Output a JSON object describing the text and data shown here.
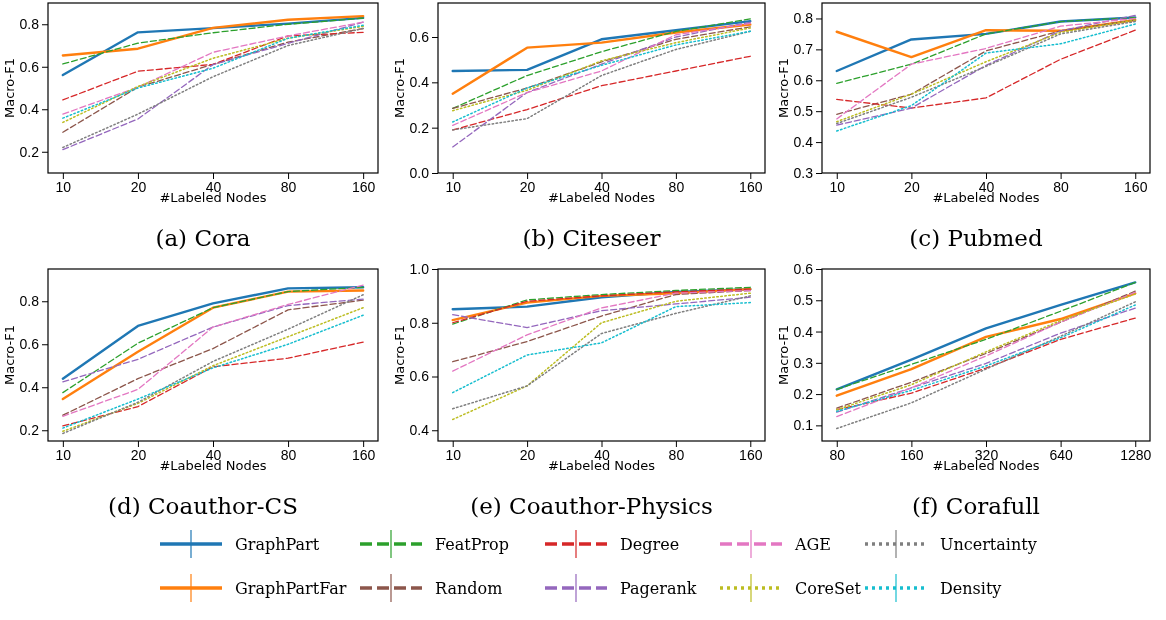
{
  "chart_data": [
    {
      "type": "line",
      "title": "(a) Cora",
      "xlabel": "#Labeled Nodes",
      "ylabel": "Macro-F1",
      "categories": [
        "10",
        "20",
        "40",
        "80",
        "160"
      ],
      "ylim": [
        0.1,
        0.9
      ],
      "yticks": [
        {
          "value": 0.2,
          "label": "0.2"
        },
        {
          "value": 0.4,
          "label": "0.4"
        },
        {
          "value": 0.6,
          "label": "0.6"
        },
        {
          "value": 0.8,
          "label": "0.8"
        }
      ],
      "legend": "bottom",
      "series": [
        {
          "name": "GraphPart",
          "color": "#1f77b4",
          "line_style": "solid",
          "values": [
            0.561,
            0.762,
            0.782,
            0.803,
            0.83
          ]
        },
        {
          "name": "GraphPartFar",
          "color": "#ff7f0e",
          "line_style": "solid",
          "values": [
            0.653,
            0.685,
            0.783,
            0.821,
            0.838
          ]
        },
        {
          "name": "FeatProp",
          "color": "#2ca02c",
          "line_style": "dashed",
          "values": [
            0.613,
            0.711,
            0.76,
            0.8,
            0.829
          ]
        },
        {
          "name": "Random",
          "color": "#8c564b",
          "line_style": "dashed",
          "values": [
            0.292,
            0.504,
            0.611,
            0.716,
            0.78
          ]
        },
        {
          "name": "Degree",
          "color": "#d62728",
          "line_style": "dashed",
          "values": [
            0.444,
            0.579,
            0.611,
            0.745,
            0.762
          ]
        },
        {
          "name": "Pagerank",
          "color": "#9467bd",
          "line_style": "dashed",
          "values": [
            0.21,
            0.354,
            0.61,
            0.71,
            0.81
          ]
        },
        {
          "name": "AGE",
          "color": "#e377c2",
          "line_style": "dashed",
          "values": [
            0.377,
            0.504,
            0.668,
            0.745,
            0.81
          ]
        },
        {
          "name": "CoreSet",
          "color": "#bcbd22",
          "line_style": "dotted",
          "values": [
            0.338,
            0.507,
            0.64,
            0.734,
            0.79
          ]
        },
        {
          "name": "Uncertainty",
          "color": "#7f7f7f",
          "line_style": "dotted",
          "values": [
            0.22,
            0.377,
            0.553,
            0.7,
            0.78
          ]
        },
        {
          "name": "Density",
          "color": "#17becf",
          "line_style": "dotted",
          "values": [
            0.358,
            0.5,
            0.593,
            0.734,
            0.795
          ]
        }
      ]
    },
    {
      "type": "line",
      "title": "(b) Citeseer",
      "xlabel": "#Labeled Nodes",
      "ylabel": "Macro-F1",
      "categories": [
        "10",
        "20",
        "40",
        "80",
        "160"
      ],
      "ylim": [
        0,
        0.75
      ],
      "yticks": [
        {
          "value": 0,
          "label": "0.0"
        },
        {
          "value": 0.2,
          "label": "0.2"
        },
        {
          "value": 0.4,
          "label": "0.4"
        },
        {
          "value": 0.6,
          "label": "0.6"
        }
      ],
      "legend": "bottom",
      "series": [
        {
          "name": "GraphPart",
          "color": "#1f77b4",
          "line_style": "solid",
          "values": [
            0.45,
            0.455,
            0.59,
            0.63,
            0.67
          ]
        },
        {
          "name": "GraphPartFar",
          "color": "#ff7f0e",
          "line_style": "solid",
          "values": [
            0.35,
            0.553,
            0.575,
            0.62,
            0.655
          ]
        },
        {
          "name": "FeatProp",
          "color": "#2ca02c",
          "line_style": "dashed",
          "values": [
            0.285,
            0.43,
            0.535,
            0.625,
            0.68
          ]
        },
        {
          "name": "Random",
          "color": "#8c564b",
          "line_style": "dashed",
          "values": [
            0.285,
            0.375,
            0.49,
            0.59,
            0.645
          ]
        },
        {
          "name": "Degree",
          "color": "#d62728",
          "line_style": "dashed",
          "values": [
            0.19,
            0.28,
            0.385,
            0.45,
            0.515
          ]
        },
        {
          "name": "Pagerank",
          "color": "#9467bd",
          "line_style": "dashed",
          "values": [
            0.115,
            0.355,
            0.48,
            0.6,
            0.665
          ]
        },
        {
          "name": "AGE",
          "color": "#e377c2",
          "line_style": "dashed",
          "values": [
            0.21,
            0.355,
            0.45,
            0.61,
            0.66
          ]
        },
        {
          "name": "CoreSet",
          "color": "#bcbd22",
          "line_style": "dotted",
          "values": [
            0.275,
            0.365,
            0.495,
            0.575,
            0.64
          ]
        },
        {
          "name": "Uncertainty",
          "color": "#7f7f7f",
          "line_style": "dotted",
          "values": [
            0.19,
            0.24,
            0.43,
            0.545,
            0.625
          ]
        },
        {
          "name": "Density",
          "color": "#17becf",
          "line_style": "dotted",
          "values": [
            0.225,
            0.375,
            0.475,
            0.565,
            0.625
          ]
        }
      ]
    },
    {
      "type": "line",
      "title": "(c) Pubmed",
      "xlabel": "#Labeled Nodes",
      "ylabel": "Macro-F1",
      "categories": [
        "10",
        "20",
        "40",
        "80",
        "160"
      ],
      "ylim": [
        0.3,
        0.85
      ],
      "yticks": [
        {
          "value": 0.3,
          "label": "0.3"
        },
        {
          "value": 0.4,
          "label": "0.4"
        },
        {
          "value": 0.5,
          "label": "0.5"
        },
        {
          "value": 0.6,
          "label": "0.6"
        },
        {
          "value": 0.7,
          "label": "0.7"
        },
        {
          "value": 0.8,
          "label": "0.8"
        }
      ],
      "legend": "bottom",
      "series": [
        {
          "name": "GraphPart",
          "color": "#1f77b4",
          "line_style": "solid",
          "values": [
            0.63,
            0.732,
            0.75,
            0.79,
            0.803
          ]
        },
        {
          "name": "GraphPartFar",
          "color": "#ff7f0e",
          "line_style": "solid",
          "values": [
            0.757,
            0.675,
            0.762,
            0.76,
            0.795
          ]
        },
        {
          "name": "FeatProp",
          "color": "#2ca02c",
          "line_style": "dashed",
          "values": [
            0.59,
            0.652,
            0.75,
            0.79,
            0.803
          ]
        },
        {
          "name": "Random",
          "color": "#8c564b",
          "line_style": "dashed",
          "values": [
            0.49,
            0.555,
            0.695,
            0.76,
            0.795
          ]
        },
        {
          "name": "Degree",
          "color": "#d62728",
          "line_style": "dashed",
          "values": [
            0.538,
            0.51,
            0.543,
            0.668,
            0.762
          ]
        },
        {
          "name": "Pagerank",
          "color": "#9467bd",
          "line_style": "dashed",
          "values": [
            0.455,
            0.51,
            0.648,
            0.76,
            0.81
          ]
        },
        {
          "name": "AGE",
          "color": "#e377c2",
          "line_style": "dashed",
          "values": [
            0.475,
            0.652,
            0.703,
            0.775,
            0.8
          ]
        },
        {
          "name": "CoreSet",
          "color": "#bcbd22",
          "line_style": "dotted",
          "values": [
            0.466,
            0.555,
            0.66,
            0.755,
            0.795
          ]
        },
        {
          "name": "Uncertainty",
          "color": "#7f7f7f",
          "line_style": "dotted",
          "values": [
            0.46,
            0.545,
            0.645,
            0.75,
            0.79
          ]
        },
        {
          "name": "Density",
          "color": "#17becf",
          "line_style": "dotted",
          "values": [
            0.436,
            0.518,
            0.688,
            0.718,
            0.782
          ]
        }
      ]
    },
    {
      "type": "line",
      "title": "(d) Coauthor-CS",
      "xlabel": "#Labeled Nodes",
      "ylabel": "Macro-F1",
      "categories": [
        "10",
        "20",
        "40",
        "80",
        "160"
      ],
      "ylim": [
        0.15,
        0.95
      ],
      "yticks": [
        {
          "value": 0.2,
          "label": "0.2"
        },
        {
          "value": 0.4,
          "label": "0.4"
        },
        {
          "value": 0.6,
          "label": "0.6"
        },
        {
          "value": 0.8,
          "label": "0.8"
        }
      ],
      "legend": "bottom",
      "series": [
        {
          "name": "GraphPart",
          "color": "#1f77b4",
          "line_style": "solid",
          "values": [
            0.44,
            0.685,
            0.79,
            0.86,
            0.865
          ]
        },
        {
          "name": "GraphPartFar",
          "color": "#ff7f0e",
          "line_style": "solid",
          "values": [
            0.345,
            0.565,
            0.77,
            0.845,
            0.85
          ]
        },
        {
          "name": "FeatProp",
          "color": "#2ca02c",
          "line_style": "dashed",
          "values": [
            0.375,
            0.605,
            0.77,
            0.845,
            0.865
          ]
        },
        {
          "name": "Random",
          "color": "#8c564b",
          "line_style": "dashed",
          "values": [
            0.27,
            0.44,
            0.58,
            0.76,
            0.805
          ]
        },
        {
          "name": "Degree",
          "color": "#d62728",
          "line_style": "dashed",
          "values": [
            0.22,
            0.31,
            0.495,
            0.535,
            0.61
          ]
        },
        {
          "name": "Pagerank",
          "color": "#9467bd",
          "line_style": "dashed",
          "values": [
            0.425,
            0.53,
            0.68,
            0.78,
            0.81
          ]
        },
        {
          "name": "AGE",
          "color": "#e377c2",
          "line_style": "dashed",
          "values": [
            0.265,
            0.39,
            0.68,
            0.785,
            0.875
          ]
        },
        {
          "name": "CoreSet",
          "color": "#bcbd22",
          "line_style": "dotted",
          "values": [
            0.195,
            0.325,
            0.5,
            0.635,
            0.77
          ]
        },
        {
          "name": "Uncertainty",
          "color": "#7f7f7f",
          "line_style": "dotted",
          "values": [
            0.185,
            0.33,
            0.52,
            0.67,
            0.83
          ]
        },
        {
          "name": "Density",
          "color": "#17becf",
          "line_style": "dotted",
          "values": [
            0.21,
            0.345,
            0.49,
            0.6,
            0.735
          ]
        }
      ]
    },
    {
      "type": "line",
      "title": "(e) Coauthor-Physics",
      "xlabel": "#Labeled Nodes",
      "ylabel": "Macro-F1",
      "categories": [
        "10",
        "20",
        "40",
        "80",
        "160"
      ],
      "ylim": [
        0.36,
        1.0
      ],
      "yticks": [
        {
          "value": 0.4,
          "label": "0.4"
        },
        {
          "value": 0.6,
          "label": "0.6"
        },
        {
          "value": 0.8,
          "label": "0.8"
        },
        {
          "value": 1.0,
          "label": "1.0"
        }
      ],
      "legend": "bottom",
      "series": [
        {
          "name": "GraphPart",
          "color": "#1f77b4",
          "line_style": "solid",
          "values": [
            0.85,
            0.86,
            0.895,
            0.915,
            0.925
          ]
        },
        {
          "name": "GraphPartFar",
          "color": "#ff7f0e",
          "line_style": "solid",
          "values": [
            0.81,
            0.875,
            0.9,
            0.91,
            0.925
          ]
        },
        {
          "name": "FeatProp",
          "color": "#2ca02c",
          "line_style": "dashed",
          "values": [
            0.795,
            0.885,
            0.905,
            0.92,
            0.932
          ]
        },
        {
          "name": "Random",
          "color": "#8c564b",
          "line_style": "dashed",
          "values": [
            0.655,
            0.73,
            0.825,
            0.905,
            0.92
          ]
        },
        {
          "name": "Degree",
          "color": "#d62728",
          "line_style": "dashed",
          "values": [
            0.8,
            0.88,
            0.9,
            0.915,
            0.925
          ]
        },
        {
          "name": "Pagerank",
          "color": "#9467bd",
          "line_style": "dashed",
          "values": [
            0.83,
            0.782,
            0.845,
            0.87,
            0.895
          ]
        },
        {
          "name": "AGE",
          "color": "#e377c2",
          "line_style": "dashed",
          "values": [
            0.62,
            0.755,
            0.855,
            0.91,
            0.92
          ]
        },
        {
          "name": "CoreSet",
          "color": "#bcbd22",
          "line_style": "dotted",
          "values": [
            0.44,
            0.565,
            0.8,
            0.88,
            0.91
          ]
        },
        {
          "name": "Uncertainty",
          "color": "#7f7f7f",
          "line_style": "dotted",
          "values": [
            0.48,
            0.565,
            0.76,
            0.835,
            0.9
          ]
        },
        {
          "name": "Density",
          "color": "#17becf",
          "line_style": "dotted",
          "values": [
            0.54,
            0.68,
            0.725,
            0.86,
            0.875
          ]
        }
      ]
    },
    {
      "type": "line",
      "title": "(f) Corafull",
      "xlabel": "#Labeled Nodes",
      "ylabel": "Macro-F1",
      "categories": [
        "80",
        "160",
        "320",
        "640",
        "1280"
      ],
      "ylim": [
        0.05,
        0.6
      ],
      "yticks": [
        0.1,
        0.2,
        0.3,
        0.4,
        0.5,
        0.6
      ],
      "legend": "bottom",
      "series": [
        {
          "name": "GraphPart",
          "color": "#1f77b4",
          "line_style": "solid",
          "values": [
            0.215,
            0.31,
            0.41,
            0.485,
            0.557
          ]
        },
        {
          "name": "GraphPartFar",
          "color": "#ff7f0e",
          "line_style": "solid",
          "values": [
            0.195,
            0.28,
            0.383,
            0.44,
            0.522
          ]
        },
        {
          "name": "FeatProp",
          "color": "#2ca02c",
          "line_style": "dashed",
          "values": [
            0.215,
            0.295,
            0.375,
            0.465,
            0.557
          ]
        },
        {
          "name": "Random",
          "color": "#8c564b",
          "line_style": "dashed",
          "values": [
            0.155,
            0.238,
            0.33,
            0.43,
            0.529
          ]
        },
        {
          "name": "Degree",
          "color": "#d62728",
          "line_style": "dashed",
          "values": [
            0.15,
            0.203,
            0.283,
            0.375,
            0.443
          ]
        },
        {
          "name": "Pagerank",
          "color": "#9467bd",
          "line_style": "dashed",
          "values": [
            0.142,
            0.22,
            0.298,
            0.395,
            0.475
          ]
        },
        {
          "name": "AGE",
          "color": "#e377c2",
          "line_style": "dashed",
          "values": [
            0.128,
            0.22,
            0.322,
            0.43,
            0.525
          ]
        },
        {
          "name": "CoreSet",
          "color": "#bcbd22",
          "line_style": "dotted",
          "values": [
            0.15,
            0.23,
            0.335,
            0.435,
            0.52
          ]
        },
        {
          "name": "Uncertainty",
          "color": "#7f7f7f",
          "line_style": "dotted",
          "values": [
            0.09,
            0.172,
            0.28,
            0.385,
            0.495
          ]
        },
        {
          "name": "Density",
          "color": "#17becf",
          "line_style": "dotted",
          "values": [
            0.145,
            0.212,
            0.29,
            0.38,
            0.485
          ]
        }
      ]
    }
  ]
}
